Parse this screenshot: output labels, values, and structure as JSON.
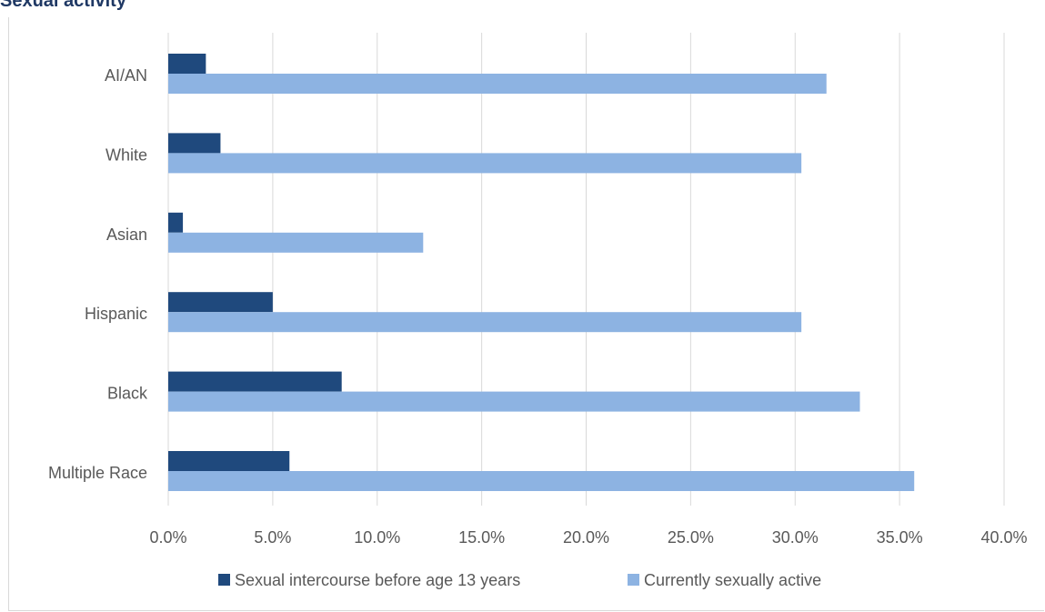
{
  "title": "Sexual activity",
  "chart_data": {
    "type": "bar",
    "orientation": "horizontal",
    "categories": [
      "AI/AN",
      "White",
      "Asian",
      "Hispanic",
      "Black",
      "Multiple Race"
    ],
    "series": [
      {
        "name": "Sexual intercourse before age 13 years",
        "color": "#1f497d",
        "values": [
          1.8,
          2.5,
          0.7,
          5.0,
          8.3,
          5.8
        ]
      },
      {
        "name": "Currently sexually active",
        "color": "#8db3e2",
        "values": [
          31.5,
          30.3,
          12.2,
          30.3,
          33.1,
          35.7
        ]
      }
    ],
    "xlim": [
      0,
      40
    ],
    "xticks": [
      0,
      5,
      10,
      15,
      20,
      25,
      30,
      35,
      40
    ],
    "tick_labels": [
      "0.0%",
      "5.0%",
      "10.0%",
      "15.0%",
      "20.0%",
      "25.0%",
      "30.0%",
      "35.0%",
      "40.0%"
    ],
    "value_unit": "%",
    "grid": true,
    "legend_position": "bottom",
    "gridline_color": "#d9d9d9",
    "label_color": "#595959"
  }
}
